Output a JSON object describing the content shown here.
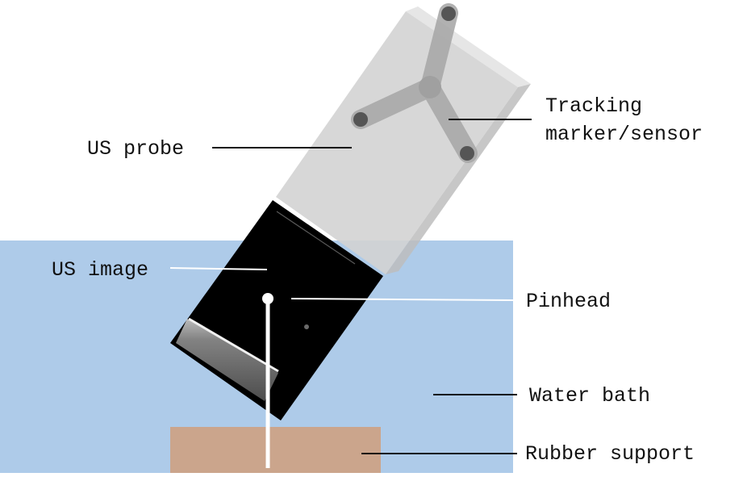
{
  "labels": {
    "us_probe": "US probe",
    "tracking_line1": "Tracking",
    "tracking_line2": "marker/sensor",
    "us_image": "US image",
    "pinhead": "Pinhead",
    "water_bath": "Water bath",
    "rubber_support": "Rubber support"
  },
  "colors": {
    "water": "#aecbe9",
    "rubber": "#cba58c",
    "probe_front": "#d3d3d3",
    "probe_side": "#bdbdbd",
    "probe_top": "#e3e3e3",
    "marker": "#555555",
    "image_bg": "#000000",
    "leader_dark": "#111111",
    "leader_light": "#ffffff"
  }
}
